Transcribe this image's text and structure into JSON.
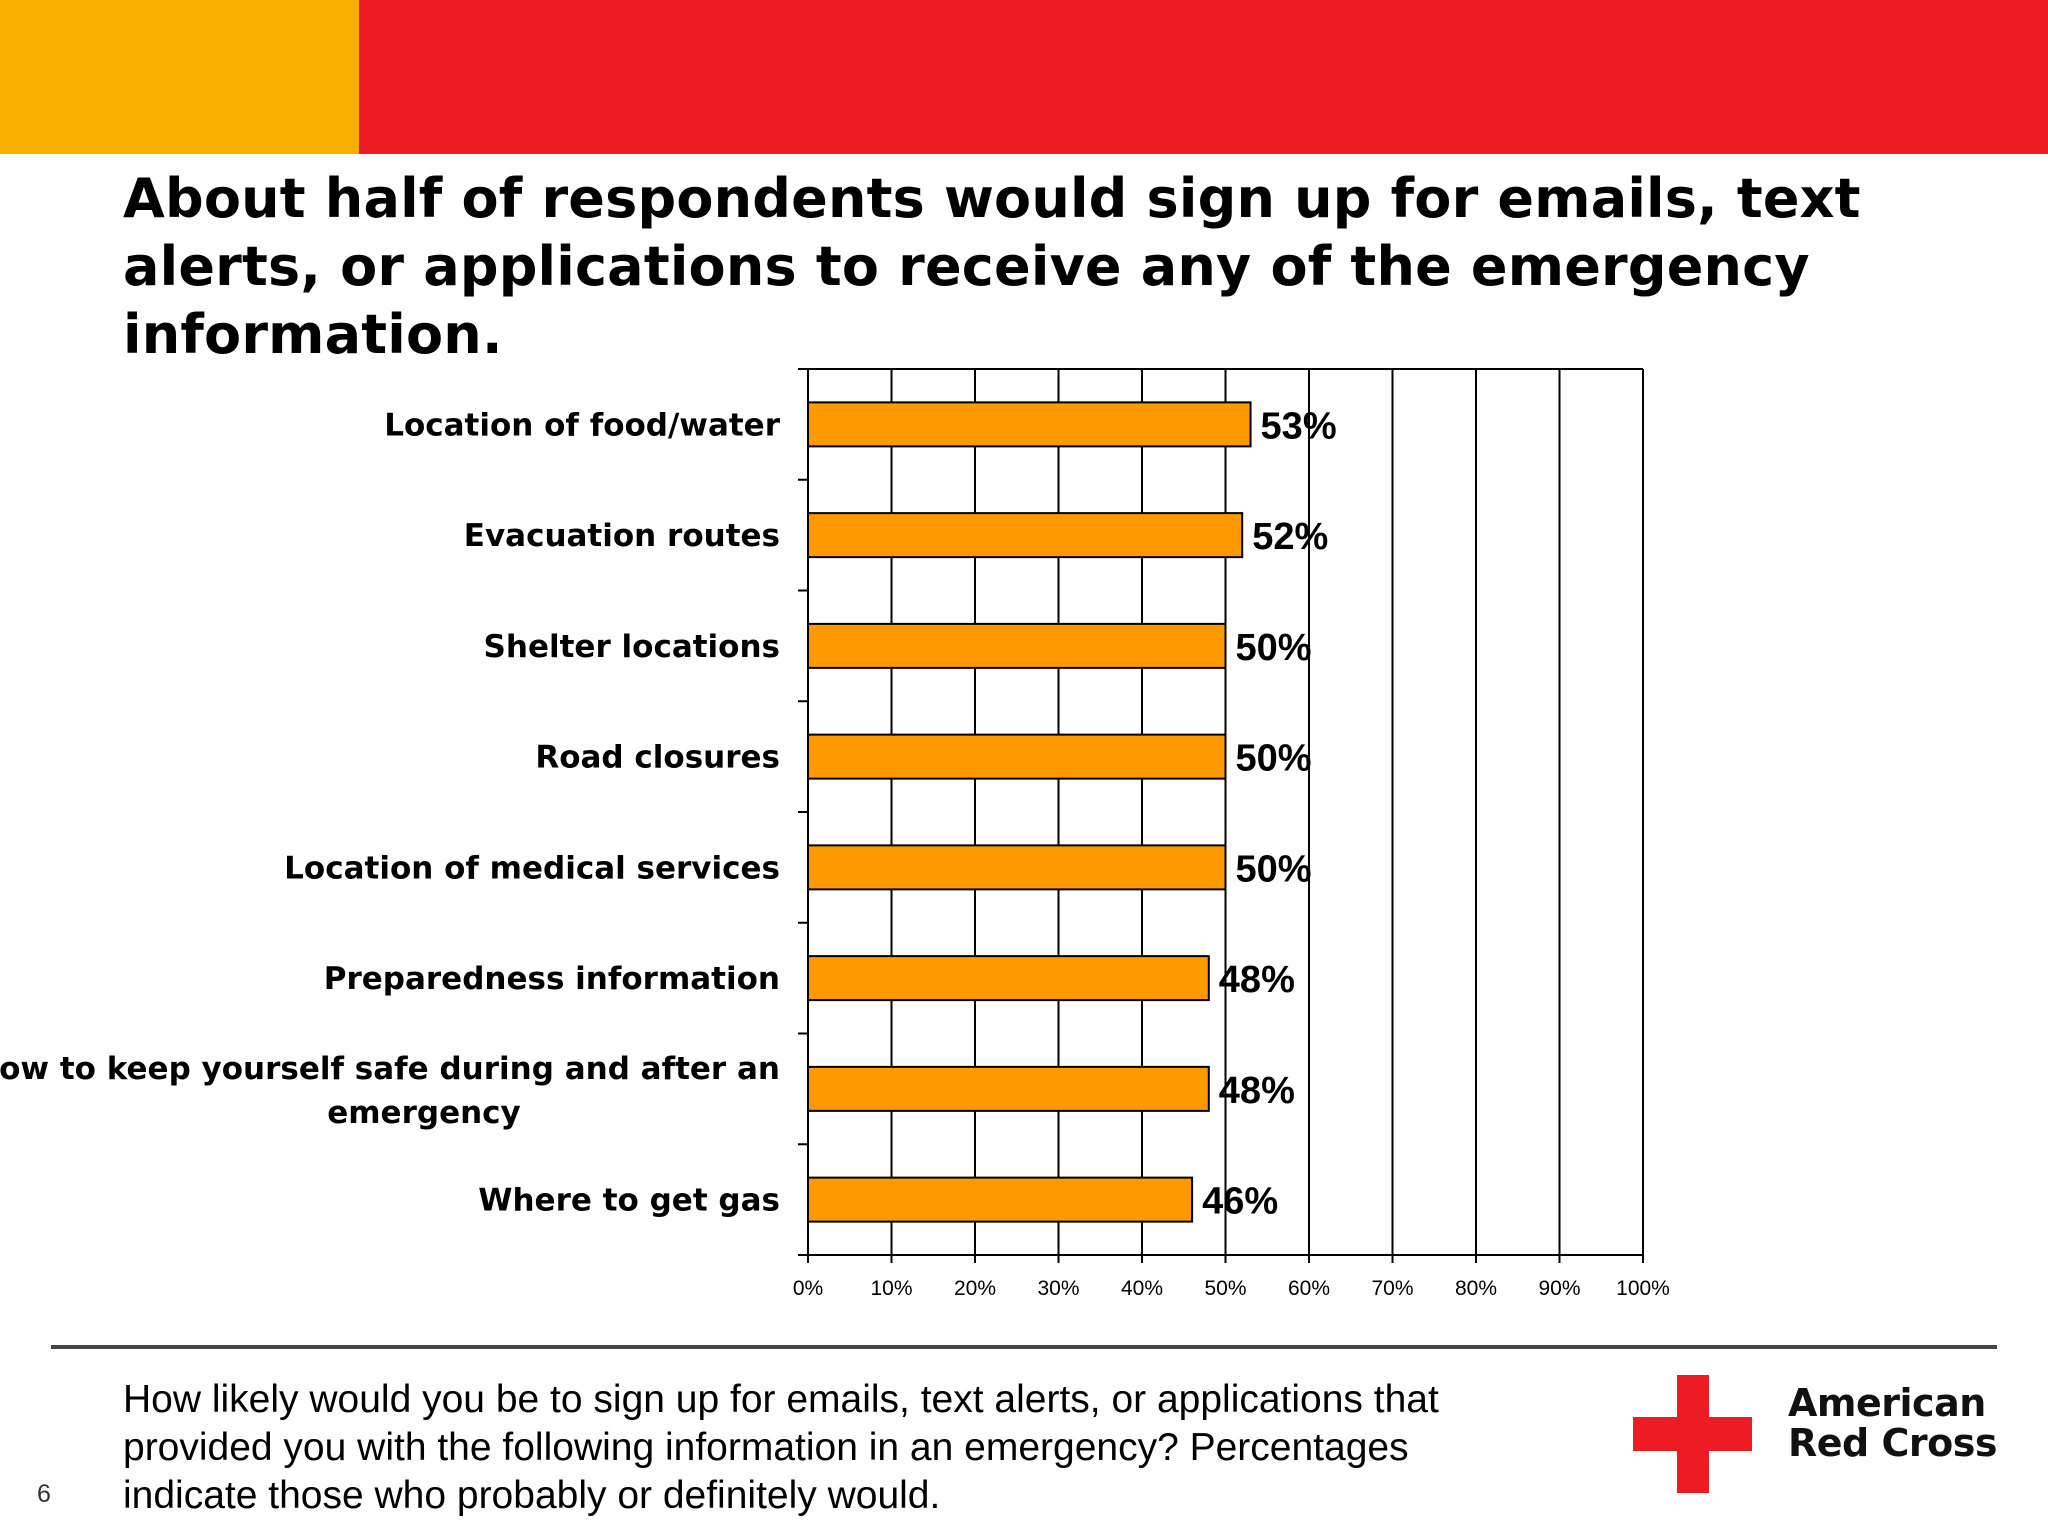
{
  "colors": {
    "band_left": "#F7AE00",
    "band_right": "#ED1C24",
    "bar_fill": "#FF9900",
    "bar_stroke": "#000000",
    "logo_cross": "#ED1C24"
  },
  "slide": {
    "title": "About half of respondents would sign up for emails, text alerts, or applications to receive any of the emergency information.",
    "question": "How likely would you be to sign up for emails, text alerts, or applications that provided you with the following information in an emergency?  Percentages indicate those who probably or definitely would.",
    "slide_number": "6",
    "logo_line1": "American",
    "logo_line2": "Red Cross",
    "logo_icon": "red-cross-icon"
  },
  "chart_data": {
    "type": "bar",
    "orientation": "horizontal",
    "categories": [
      "Location of food/water",
      "Evacuation routes",
      "Shelter locations",
      "Road closures",
      "Location of medical services",
      "Preparedness information",
      "How to keep yourself safe during and after an emergency",
      "Where to get gas"
    ],
    "category_lines": [
      [
        "Location of food/water"
      ],
      [
        "Evacuation routes"
      ],
      [
        "Shelter locations"
      ],
      [
        "Road closures"
      ],
      [
        "Location of medical services"
      ],
      [
        "Preparedness information"
      ],
      [
        "How to keep yourself safe during and after an",
        "emergency"
      ],
      [
        "Where to get gas"
      ]
    ],
    "values": [
      53,
      52,
      50,
      50,
      50,
      48,
      48,
      46
    ],
    "data_labels": [
      "53%",
      "52%",
      "50%",
      "50%",
      "50%",
      "48%",
      "48%",
      "46%"
    ],
    "xlim": [
      0,
      100
    ],
    "xticks": [
      0,
      10,
      20,
      30,
      40,
      50,
      60,
      70,
      80,
      90,
      100
    ],
    "xtick_labels": [
      "0%",
      "10%",
      "20%",
      "30%",
      "40%",
      "50%",
      "60%",
      "70%",
      "80%",
      "90%",
      "100%"
    ],
    "grid": true,
    "legend": "none"
  }
}
